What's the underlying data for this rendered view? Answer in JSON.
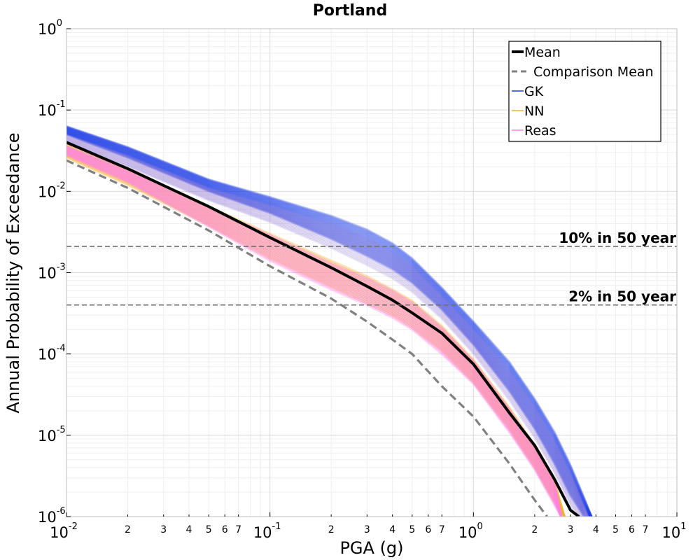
{
  "chart_data": {
    "type": "line",
    "title": "Portland",
    "xlabel": "PGA (g)",
    "ylabel": "Annual Probability of Exceedance",
    "xscale": "log",
    "yscale": "log",
    "xlim": [
      0.01,
      10
    ],
    "ylim": [
      1e-06,
      1
    ],
    "grid": true,
    "legend_position": "top-right",
    "x_major_ticks": [
      {
        "value": 0.01,
        "base": "10",
        "exp": "-2"
      },
      {
        "value": 0.1,
        "base": "10",
        "exp": "-1"
      },
      {
        "value": 1,
        "base": "10",
        "exp": "0"
      },
      {
        "value": 10,
        "base": "10",
        "exp": "1"
      }
    ],
    "y_major_ticks": [
      {
        "value": 1,
        "base": "10",
        "exp": "0"
      },
      {
        "value": 0.1,
        "base": "10",
        "exp": "-1"
      },
      {
        "value": 0.01,
        "base": "10",
        "exp": "-2"
      },
      {
        "value": 0.001,
        "base": "10",
        "exp": "-3"
      },
      {
        "value": 0.0001,
        "base": "10",
        "exp": "-4"
      },
      {
        "value": 1e-05,
        "base": "10",
        "exp": "-5"
      },
      {
        "value": 1e-06,
        "base": "10",
        "exp": "-6"
      }
    ],
    "x_minor_tick_labels": [
      "2",
      "3",
      "4",
      "5",
      "6",
      "7"
    ],
    "reference_lines": [
      {
        "label": "10% in 50 year",
        "y": 0.0021
      },
      {
        "label": "2% in 50 year",
        "y": 0.0004
      }
    ],
    "series": [
      {
        "name": "Mean",
        "color": "#000000",
        "style": "solid",
        "x": [
          0.01,
          0.02,
          0.05,
          0.1,
          0.2,
          0.3,
          0.4,
          0.5,
          0.7,
          1.0,
          1.5,
          2.0,
          2.5,
          3.0,
          3.3
        ],
        "y": [
          0.04,
          0.019,
          0.0065,
          0.0027,
          0.00115,
          0.00068,
          0.00046,
          0.00032,
          0.00018,
          7.5e-05,
          1.9e-05,
          7.5e-06,
          2.9e-06,
          1.2e-06,
          1e-06
        ]
      },
      {
        "name": "Comparison Mean",
        "color": "#808080",
        "style": "dashed",
        "x": [
          0.01,
          0.02,
          0.05,
          0.1,
          0.2,
          0.3,
          0.4,
          0.5,
          0.7,
          1.0,
          1.5,
          2.0,
          2.3
        ],
        "y": [
          0.024,
          0.011,
          0.0033,
          0.0012,
          0.00048,
          0.00025,
          0.00015,
          0.0001,
          4e-05,
          1.7e-05,
          4.5e-06,
          1.6e-06,
          1e-06
        ]
      },
      {
        "name": "GK",
        "color": "#1f3fe6",
        "style": "band",
        "x": [
          0.01,
          0.02,
          0.05,
          0.1,
          0.2,
          0.3,
          0.4,
          0.5,
          0.7,
          1.0,
          1.5,
          2.0,
          2.5,
          3.0,
          3.5,
          3.8
        ],
        "y_upper": [
          0.063,
          0.035,
          0.014,
          0.0085,
          0.005,
          0.0034,
          0.0023,
          0.0015,
          0.00065,
          0.00025,
          8e-05,
          2.8e-05,
          1.1e-05,
          4.3e-06,
          1.7e-06,
          1e-06
        ],
        "y_lower": [
          0.05,
          0.026,
          0.01,
          0.0054,
          0.0026,
          0.0016,
          0.0011,
          0.00075,
          0.00035,
          0.00013,
          3.5e-05,
          1.2e-05,
          4.5e-06,
          1.8e-06,
          1e-06,
          1e-06
        ]
      },
      {
        "name": "NN",
        "color": "#f0b030",
        "style": "band",
        "x": [
          0.01,
          0.02,
          0.05,
          0.1,
          0.2,
          0.3,
          0.4,
          0.5,
          0.7,
          1.0,
          1.5,
          2.0,
          2.5,
          2.8
        ],
        "y_upper": [
          0.038,
          0.019,
          0.0065,
          0.003,
          0.0014,
          0.0009,
          0.00062,
          0.00045,
          0.00022,
          8.5e-05,
          2.2e-05,
          7.5e-06,
          2.8e-06,
          1e-06
        ],
        "y_lower": [
          0.026,
          0.012,
          0.0038,
          0.0015,
          0.00067,
          0.00042,
          0.0003,
          0.00021,
          0.00011,
          4.5e-05,
          1.2e-05,
          4e-06,
          1.5e-06,
          1e-06
        ]
      },
      {
        "name": "Reas",
        "color": "#ff80e6",
        "style": "band",
        "x": [
          0.01,
          0.02,
          0.05,
          0.1,
          0.2,
          0.3,
          0.4,
          0.5,
          0.7,
          1.0,
          1.5,
          2.0,
          2.5,
          2.7
        ],
        "y_upper": [
          0.036,
          0.018,
          0.0062,
          0.0029,
          0.0013,
          0.00085,
          0.0006,
          0.00043,
          0.00021,
          8.2e-05,
          2.1e-05,
          7.2e-06,
          2.6e-06,
          1e-06
        ],
        "y_lower": [
          0.028,
          0.013,
          0.0037,
          0.0014,
          0.00062,
          0.0004,
          0.00028,
          0.0002,
          0.0001,
          4.3e-05,
          1.1e-05,
          3.8e-06,
          1.4e-06,
          1e-06
        ]
      }
    ],
    "legend": [
      "Mean",
      "Comparison Mean",
      "GK",
      "NN",
      "Reas"
    ]
  }
}
